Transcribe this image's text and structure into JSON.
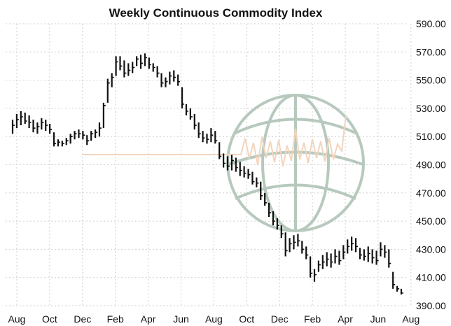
{
  "chart_data": {
    "type": "ohlc",
    "title": "Weekly Continuous Commodity Index",
    "xlabel": "",
    "ylabel": "",
    "ylim": [
      390,
      590
    ],
    "y_ticks": [
      "590.00",
      "570.00",
      "550.00",
      "530.00",
      "510.00",
      "490.00",
      "470.00",
      "450.00",
      "430.00",
      "410.00",
      "390.00"
    ],
    "x_ticks": [
      "Aug",
      "Oct",
      "Dec",
      "Feb",
      "Apr",
      "Jun",
      "Aug",
      "Oct",
      "Dec",
      "Feb",
      "Apr",
      "Jun",
      "Aug"
    ],
    "grid": true,
    "colors": {
      "bars": "#111111",
      "watermark": "#b7c9bd",
      "watermark_accent": "#f2d5bd",
      "grid": "#cfcfcf"
    },
    "watermark_icon": "globe-with-price-line-logo",
    "bars": [
      {
        "h": 522,
        "l": 512,
        "c": 518
      },
      {
        "h": 526,
        "l": 516,
        "c": 522
      },
      {
        "h": 528,
        "l": 518,
        "c": 524
      },
      {
        "h": 527,
        "l": 519,
        "c": 521
      },
      {
        "h": 525,
        "l": 516,
        "c": 520
      },
      {
        "h": 522,
        "l": 513,
        "c": 516
      },
      {
        "h": 520,
        "l": 512,
        "c": 517
      },
      {
        "h": 523,
        "l": 515,
        "c": 520
      },
      {
        "h": 522,
        "l": 514,
        "c": 518
      },
      {
        "h": 519,
        "l": 512,
        "c": 515
      },
      {
        "h": 513,
        "l": 503,
        "c": 505
      },
      {
        "h": 508,
        "l": 503,
        "c": 506
      },
      {
        "h": 507,
        "l": 503,
        "c": 505
      },
      {
        "h": 509,
        "l": 504,
        "c": 507
      },
      {
        "h": 512,
        "l": 505,
        "c": 510
      },
      {
        "h": 514,
        "l": 508,
        "c": 512
      },
      {
        "h": 515,
        "l": 509,
        "c": 512
      },
      {
        "h": 514,
        "l": 508,
        "c": 511
      },
      {
        "h": 511,
        "l": 504,
        "c": 507
      },
      {
        "h": 514,
        "l": 507,
        "c": 512
      },
      {
        "h": 515,
        "l": 509,
        "c": 513
      },
      {
        "h": 520,
        "l": 510,
        "c": 516
      },
      {
        "h": 534,
        "l": 516,
        "c": 532
      },
      {
        "h": 551,
        "l": 534,
        "c": 548
      },
      {
        "h": 555,
        "l": 545,
        "c": 552
      },
      {
        "h": 567,
        "l": 553,
        "c": 563
      },
      {
        "h": 567,
        "l": 557,
        "c": 560
      },
      {
        "h": 564,
        "l": 552,
        "c": 555
      },
      {
        "h": 562,
        "l": 553,
        "c": 557
      },
      {
        "h": 563,
        "l": 555,
        "c": 559
      },
      {
        "h": 567,
        "l": 560,
        "c": 565
      },
      {
        "h": 568,
        "l": 558,
        "c": 562
      },
      {
        "h": 569,
        "l": 560,
        "c": 566
      },
      {
        "h": 566,
        "l": 558,
        "c": 561
      },
      {
        "h": 562,
        "l": 556,
        "c": 559
      },
      {
        "h": 560,
        "l": 552,
        "c": 555
      },
      {
        "h": 555,
        "l": 545,
        "c": 548
      },
      {
        "h": 552,
        "l": 545,
        "c": 549
      },
      {
        "h": 556,
        "l": 547,
        "c": 553
      },
      {
        "h": 557,
        "l": 549,
        "c": 552
      },
      {
        "h": 554,
        "l": 546,
        "c": 549
      },
      {
        "h": 545,
        "l": 530,
        "c": 533
      },
      {
        "h": 533,
        "l": 525,
        "c": 528
      },
      {
        "h": 530,
        "l": 522,
        "c": 524
      },
      {
        "h": 526,
        "l": 515,
        "c": 518
      },
      {
        "h": 520,
        "l": 509,
        "c": 512
      },
      {
        "h": 514,
        "l": 506,
        "c": 509
      },
      {
        "h": 512,
        "l": 505,
        "c": 508
      },
      {
        "h": 516,
        "l": 506,
        "c": 511
      },
      {
        "h": 514,
        "l": 505,
        "c": 507
      },
      {
        "h": 506,
        "l": 494,
        "c": 496
      },
      {
        "h": 498,
        "l": 488,
        "c": 491
      },
      {
        "h": 496,
        "l": 486,
        "c": 489
      },
      {
        "h": 497,
        "l": 486,
        "c": 493
      },
      {
        "h": 495,
        "l": 485,
        "c": 488
      },
      {
        "h": 492,
        "l": 482,
        "c": 486
      },
      {
        "h": 489,
        "l": 481,
        "c": 484
      },
      {
        "h": 487,
        "l": 480,
        "c": 483
      },
      {
        "h": 485,
        "l": 476,
        "c": 478
      },
      {
        "h": 481,
        "l": 474,
        "c": 477
      },
      {
        "h": 478,
        "l": 465,
        "c": 468
      },
      {
        "h": 470,
        "l": 461,
        "c": 463
      },
      {
        "h": 463,
        "l": 453,
        "c": 456
      },
      {
        "h": 457,
        "l": 447,
        "c": 450
      },
      {
        "h": 452,
        "l": 444,
        "c": 447
      },
      {
        "h": 447,
        "l": 438,
        "c": 441
      },
      {
        "h": 442,
        "l": 425,
        "c": 429
      },
      {
        "h": 438,
        "l": 428,
        "c": 434
      },
      {
        "h": 440,
        "l": 430,
        "c": 435
      },
      {
        "h": 441,
        "l": 432,
        "c": 436
      },
      {
        "h": 436,
        "l": 427,
        "c": 430
      },
      {
        "h": 432,
        "l": 423,
        "c": 426
      },
      {
        "h": 425,
        "l": 410,
        "c": 413
      },
      {
        "h": 416,
        "l": 407,
        "c": 412
      },
      {
        "h": 422,
        "l": 414,
        "c": 419
      },
      {
        "h": 426,
        "l": 416,
        "c": 421
      },
      {
        "h": 428,
        "l": 418,
        "c": 423
      },
      {
        "h": 427,
        "l": 417,
        "c": 421
      },
      {
        "h": 430,
        "l": 420,
        "c": 425
      },
      {
        "h": 429,
        "l": 419,
        "c": 422
      },
      {
        "h": 433,
        "l": 423,
        "c": 428
      },
      {
        "h": 437,
        "l": 427,
        "c": 432
      },
      {
        "h": 439,
        "l": 429,
        "c": 434
      },
      {
        "h": 438,
        "l": 428,
        "c": 432
      },
      {
        "h": 431,
        "l": 423,
        "c": 426
      },
      {
        "h": 430,
        "l": 422,
        "c": 425
      },
      {
        "h": 432,
        "l": 421,
        "c": 427
      },
      {
        "h": 430,
        "l": 420,
        "c": 424
      },
      {
        "h": 429,
        "l": 419,
        "c": 422
      },
      {
        "h": 435,
        "l": 425,
        "c": 430
      },
      {
        "h": 433,
        "l": 424,
        "c": 428
      },
      {
        "h": 430,
        "l": 417,
        "c": 420
      },
      {
        "h": 414,
        "l": 402,
        "c": 405
      },
      {
        "h": 404,
        "l": 400,
        "c": 402
      },
      {
        "h": 402,
        "l": 398,
        "c": 399
      }
    ]
  }
}
